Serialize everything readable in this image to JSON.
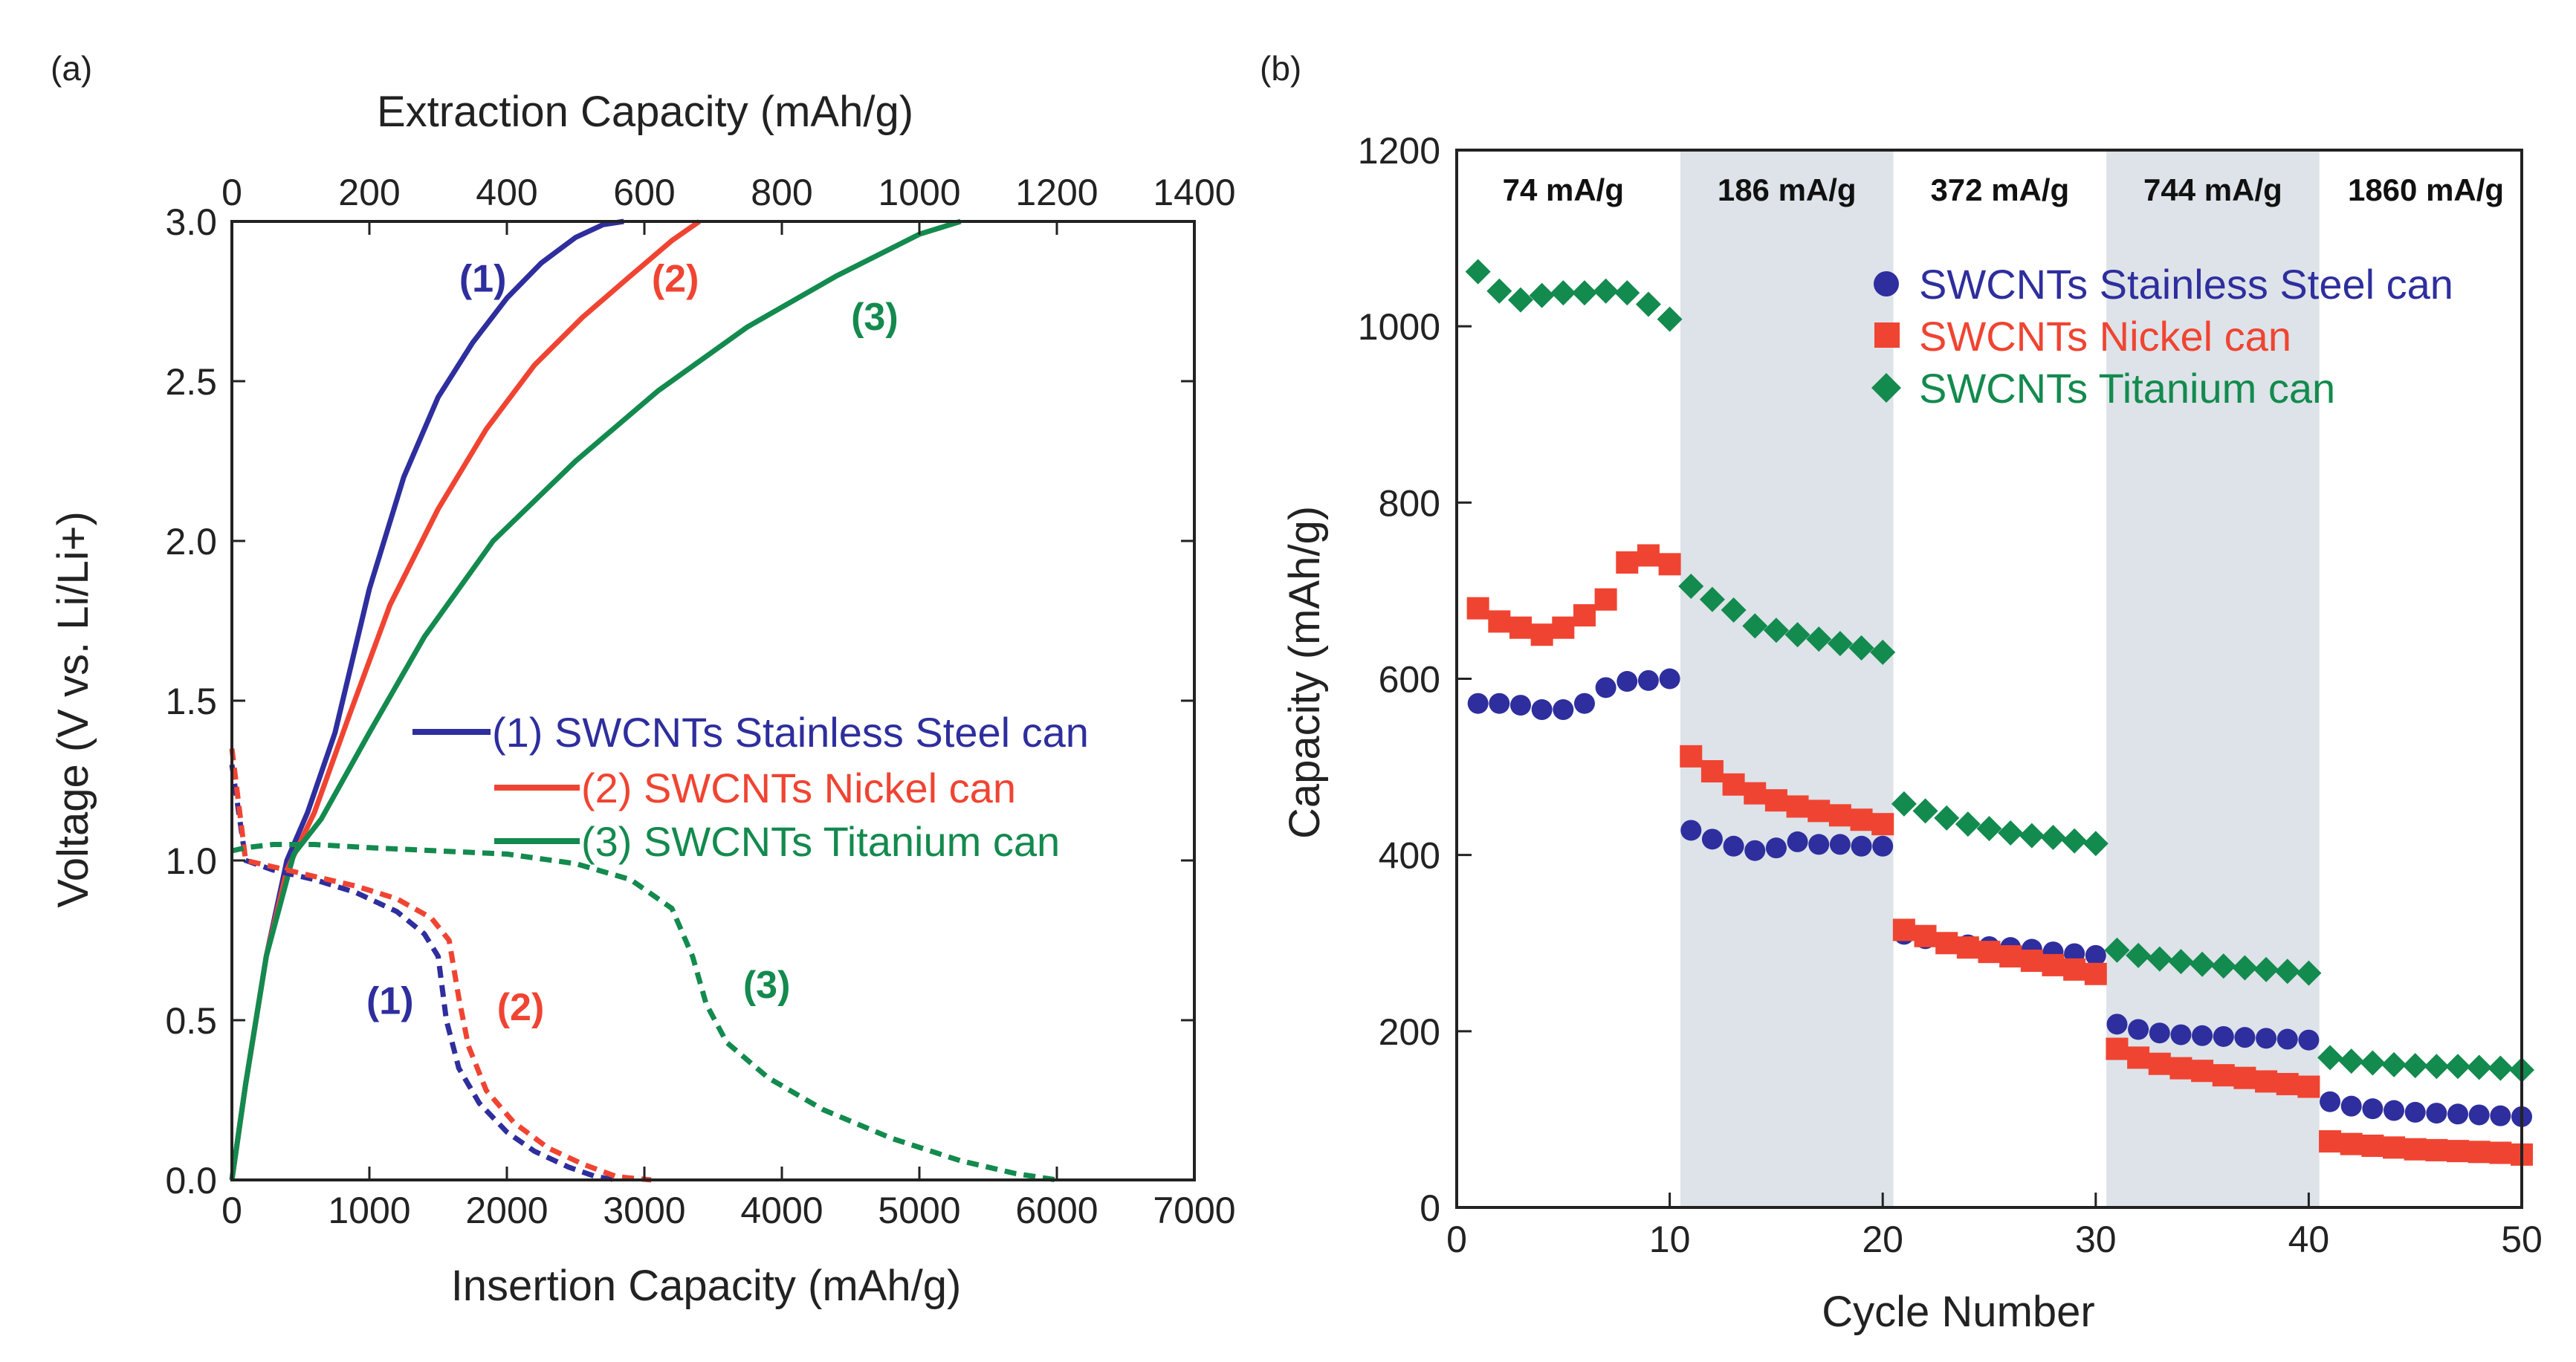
{
  "colors": {
    "blue": "#2e2e9e",
    "red": "#f04432",
    "green": "#138a4e",
    "band": "#dde3e8",
    "axis": "#222222"
  },
  "chart_data": [
    {
      "id": "a",
      "panel_label": "(a)",
      "type": "line",
      "xlabel_bottom": "Insertion Capacity (mAh/g)",
      "xlabel_top": "Extraction Capacity (mAh/g)",
      "ylabel": "Voltage (V vs. Li/Li+)",
      "xlim_bottom": [
        0,
        7000
      ],
      "xlim_top": [
        0,
        1400
      ],
      "ylim": [
        0,
        3.0
      ],
      "xticks_bottom": [
        "0",
        "1000",
        "2000",
        "3000",
        "4000",
        "5000",
        "6000",
        "7000"
      ],
      "xticks_top": [
        "0",
        "200",
        "400",
        "600",
        "800",
        "1000",
        "1200",
        "1400"
      ],
      "yticks": [
        "0.0",
        "0.5",
        "1.0",
        "1.5",
        "2.0",
        "2.5",
        "3.0"
      ],
      "legend": [
        {
          "label": "(1) SWCNTs Stainless Steel can",
          "color": "#2e2e9e"
        },
        {
          "label": "(2) SWCNTs Nickel can",
          "color": "#f04432"
        },
        {
          "label": "(3) SWCNTs Titanium can",
          "color": "#138a4e"
        }
      ],
      "annotations": [
        {
          "text": "(1)",
          "color": "#2e2e9e",
          "x_top": 365,
          "y": 2.78
        },
        {
          "text": "(2)",
          "color": "#f04432",
          "x_top": 645,
          "y": 2.78
        },
        {
          "text": "(3)",
          "color": "#138a4e",
          "x_top": 935,
          "y": 2.66
        },
        {
          "text": "(1)",
          "color": "#2e2e9e",
          "x": 1150,
          "y": 0.52
        },
        {
          "text": "(2)",
          "color": "#f04432",
          "x": 2100,
          "y": 0.5
        },
        {
          "text": "(3)",
          "color": "#138a4e",
          "x": 3890,
          "y": 0.57
        }
      ],
      "series": [
        {
          "name": "(1) extraction",
          "color": "#2e2e9e",
          "axis": "top",
          "style": "solid",
          "x": [
            0,
            20,
            50,
            80,
            110,
            150,
            200,
            250,
            300,
            350,
            400,
            450,
            500,
            540,
            570
          ],
          "y": [
            0.0,
            0.3,
            0.7,
            1.0,
            1.15,
            1.4,
            1.85,
            2.2,
            2.45,
            2.62,
            2.76,
            2.87,
            2.95,
            2.99,
            3.0
          ]
        },
        {
          "name": "(2) extraction",
          "color": "#f04432",
          "axis": "top",
          "style": "solid",
          "x": [
            0,
            20,
            50,
            80,
            120,
            170,
            230,
            300,
            370,
            440,
            510,
            580,
            640,
            680
          ],
          "y": [
            0.0,
            0.3,
            0.7,
            0.97,
            1.15,
            1.45,
            1.8,
            2.1,
            2.35,
            2.55,
            2.7,
            2.83,
            2.94,
            3.0
          ]
        },
        {
          "name": "(3) extraction",
          "color": "#138a4e",
          "axis": "top",
          "style": "solid",
          "x": [
            0,
            20,
            50,
            90,
            130,
            200,
            280,
            380,
            500,
            620,
            750,
            880,
            1000,
            1060
          ],
          "y": [
            0.0,
            0.3,
            0.7,
            1.02,
            1.13,
            1.4,
            1.7,
            2.0,
            2.25,
            2.47,
            2.67,
            2.83,
            2.96,
            3.0
          ]
        },
        {
          "name": "(1) insertion",
          "color": "#2e2e9e",
          "axis": "bottom",
          "style": "dashed",
          "x": [
            0,
            100,
            300,
            600,
            900,
            1200,
            1400,
            1500,
            1560,
            1650,
            1800,
            2000,
            2200,
            2450,
            2650,
            2800
          ],
          "y": [
            1.3,
            1.0,
            0.97,
            0.94,
            0.9,
            0.84,
            0.77,
            0.7,
            0.5,
            0.35,
            0.24,
            0.15,
            0.09,
            0.04,
            0.01,
            0.0
          ]
        },
        {
          "name": "(2) insertion",
          "color": "#f04432",
          "axis": "bottom",
          "style": "dashed",
          "x": [
            0,
            100,
            300,
            600,
            900,
            1200,
            1450,
            1580,
            1650,
            1720,
            1850,
            2050,
            2300,
            2550,
            2800,
            3050
          ],
          "y": [
            1.35,
            1.0,
            0.98,
            0.95,
            0.92,
            0.88,
            0.82,
            0.75,
            0.57,
            0.42,
            0.28,
            0.18,
            0.1,
            0.05,
            0.01,
            0.0
          ]
        },
        {
          "name": "(3) insertion",
          "color": "#138a4e",
          "axis": "bottom",
          "style": "dashed",
          "x": [
            0,
            100,
            300,
            600,
            1000,
            1500,
            2000,
            2500,
            2900,
            3200,
            3350,
            3450,
            3600,
            3900,
            4300,
            4800,
            5300,
            5700,
            6000
          ],
          "y": [
            1.03,
            1.04,
            1.05,
            1.05,
            1.04,
            1.03,
            1.02,
            0.99,
            0.94,
            0.85,
            0.7,
            0.55,
            0.43,
            0.32,
            0.22,
            0.13,
            0.06,
            0.02,
            0.0
          ]
        }
      ]
    },
    {
      "id": "b",
      "panel_label": "(b)",
      "type": "scatter",
      "xlabel": "Cycle Number",
      "ylabel": "Capacity (mAh/g)",
      "xlim": [
        0,
        50
      ],
      "ylim": [
        0,
        1200
      ],
      "xticks": [
        "0",
        "10",
        "20",
        "30",
        "40",
        "50"
      ],
      "yticks": [
        "0",
        "200",
        "400",
        "600",
        "800",
        "1000",
        "1200"
      ],
      "shaded_ranges": [
        [
          10.5,
          20.5
        ],
        [
          30.5,
          40.5
        ]
      ],
      "rate_labels": [
        {
          "text": "74 mA/g",
          "x": 5
        },
        {
          "text": "186 mA/g",
          "x": 15.5
        },
        {
          "text": "372 mA/g",
          "x": 25.5
        },
        {
          "text": "744 mA/g",
          "x": 35.5
        },
        {
          "text": "1860 mA/g",
          "x": 45.5
        }
      ],
      "series": [
        {
          "name": "SWCNTs Stainless Steel can",
          "color": "#2e2e9e",
          "marker": "circle",
          "x": [
            1,
            2,
            3,
            4,
            5,
            6,
            7,
            8,
            9,
            10,
            11,
            12,
            13,
            14,
            15,
            16,
            17,
            18,
            19,
            20,
            21,
            22,
            23,
            24,
            25,
            26,
            27,
            28,
            29,
            30,
            31,
            32,
            33,
            34,
            35,
            36,
            37,
            38,
            39,
            40,
            41,
            42,
            43,
            44,
            45,
            46,
            47,
            48,
            49,
            50
          ],
          "values": [
            572,
            572,
            570,
            565,
            565,
            572,
            590,
            597,
            598,
            600,
            428,
            418,
            410,
            405,
            408,
            415,
            412,
            412,
            410,
            410,
            310,
            305,
            300,
            298,
            296,
            295,
            293,
            290,
            288,
            286,
            208,
            202,
            198,
            196,
            195,
            194,
            193,
            192,
            191,
            190,
            120,
            115,
            112,
            110,
            108,
            107,
            106,
            105,
            104,
            103
          ]
        },
        {
          "name": "SWCNTs Nickel can",
          "color": "#f04432",
          "marker": "square",
          "x": [
            1,
            2,
            3,
            4,
            5,
            6,
            7,
            8,
            9,
            10,
            11,
            12,
            13,
            14,
            15,
            16,
            17,
            18,
            19,
            20,
            21,
            22,
            23,
            24,
            25,
            26,
            27,
            28,
            29,
            30,
            31,
            32,
            33,
            34,
            35,
            36,
            37,
            38,
            39,
            40,
            41,
            42,
            43,
            44,
            45,
            46,
            47,
            48,
            49,
            50
          ],
          "values": [
            680,
            665,
            658,
            650,
            658,
            672,
            690,
            732,
            740,
            730,
            512,
            495,
            480,
            470,
            462,
            455,
            450,
            445,
            440,
            435,
            315,
            308,
            300,
            295,
            290,
            285,
            280,
            275,
            270,
            265,
            180,
            170,
            163,
            158,
            155,
            150,
            147,
            143,
            140,
            137,
            75,
            72,
            70,
            68,
            66,
            65,
            64,
            63,
            62,
            60
          ]
        },
        {
          "name": "SWCNTs Titanium can",
          "color": "#138a4e",
          "marker": "diamond",
          "x": [
            1,
            2,
            3,
            4,
            5,
            6,
            7,
            8,
            9,
            10,
            11,
            12,
            13,
            14,
            15,
            16,
            17,
            18,
            19,
            20,
            21,
            22,
            23,
            24,
            25,
            26,
            27,
            28,
            29,
            30,
            31,
            32,
            33,
            34,
            35,
            36,
            37,
            38,
            39,
            40,
            41,
            42,
            43,
            44,
            45,
            46,
            47,
            48,
            49,
            50
          ],
          "values": [
            1062,
            1040,
            1030,
            1035,
            1038,
            1038,
            1040,
            1038,
            1025,
            1008,
            705,
            690,
            678,
            660,
            655,
            650,
            645,
            640,
            635,
            630,
            458,
            450,
            442,
            435,
            430,
            425,
            422,
            420,
            416,
            413,
            292,
            286,
            282,
            279,
            276,
            274,
            272,
            270,
            268,
            266,
            170,
            166,
            164,
            162,
            161,
            160,
            160,
            159,
            158,
            156
          ]
        }
      ]
    }
  ]
}
